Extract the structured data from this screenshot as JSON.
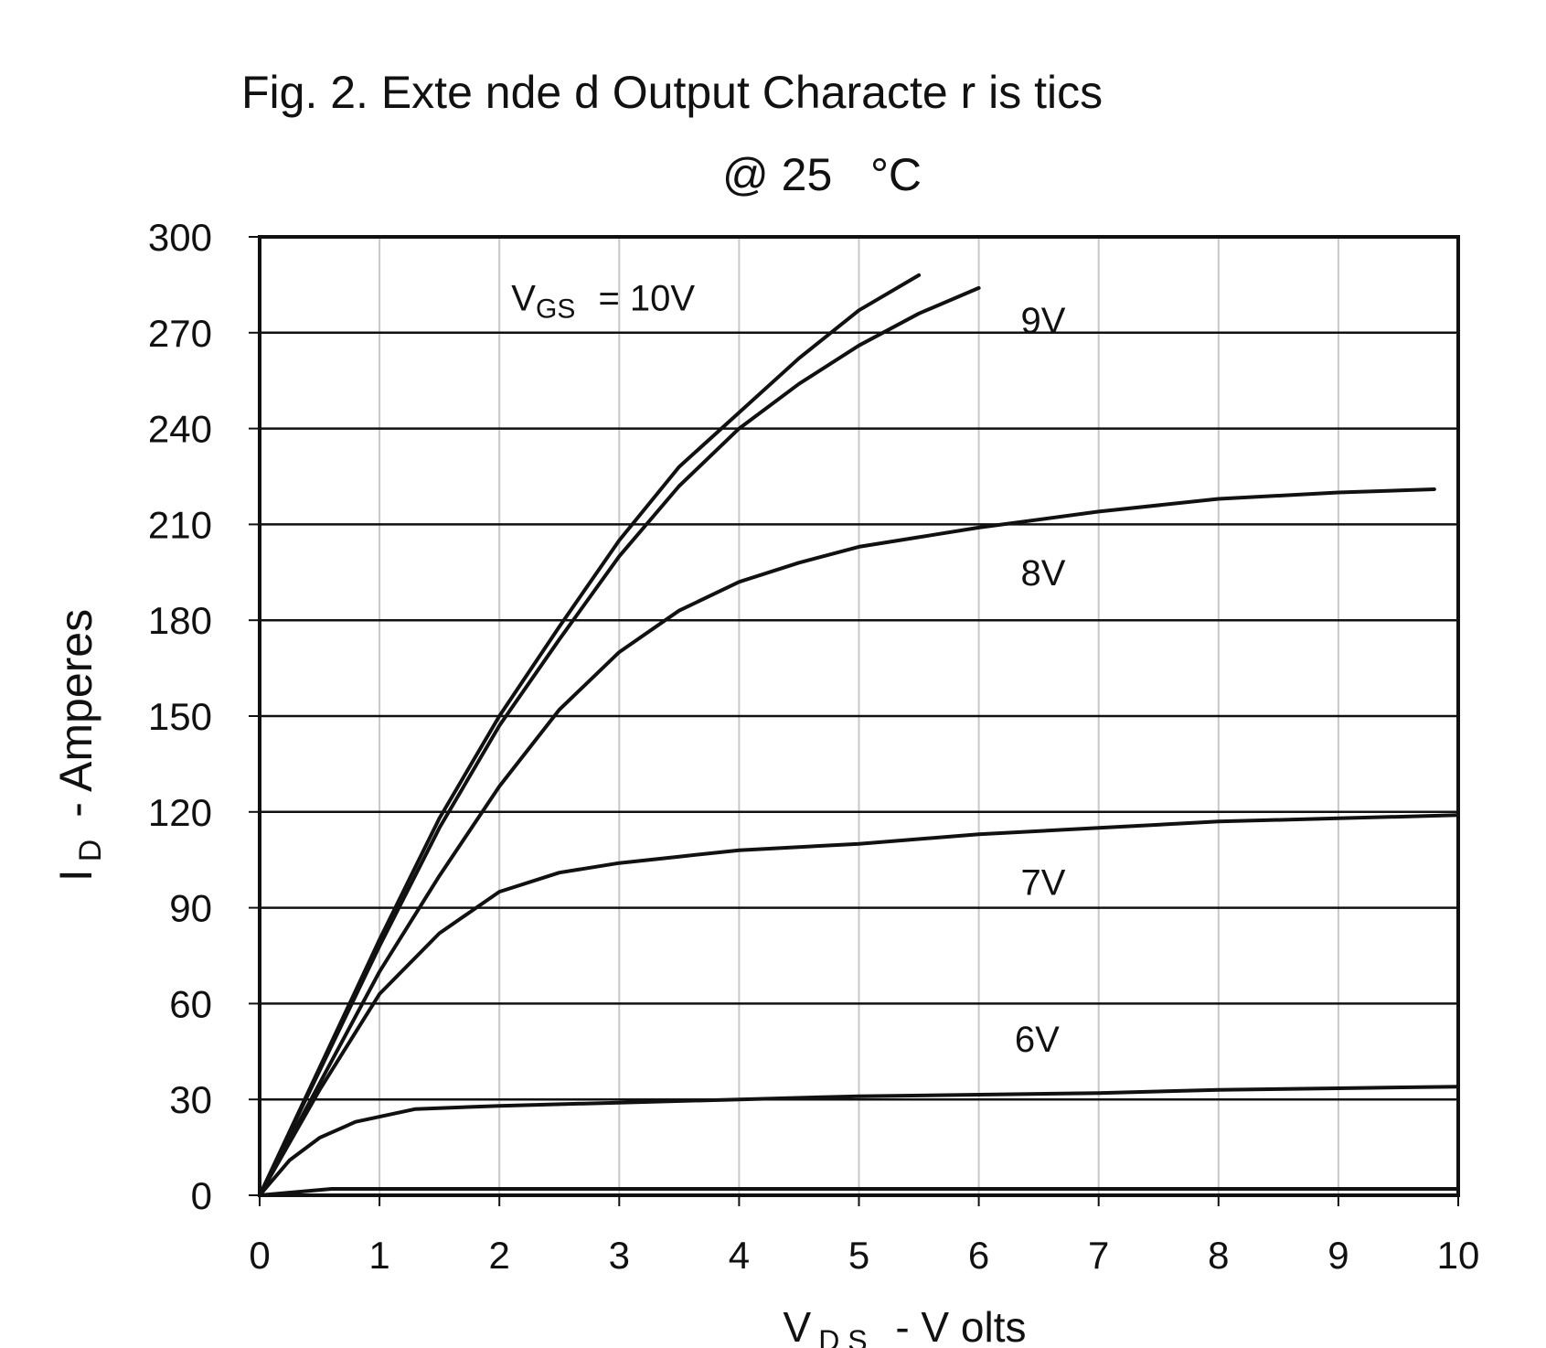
{
  "chart_data": {
    "type": "line",
    "title": "Fig. 2. Exte nde d Output Characte r is tics",
    "subtitle": "@ 25   °C",
    "xlabel": {
      "main": "V",
      "sub": "D S",
      "rest": " - V olts"
    },
    "ylabel": {
      "main": "I",
      "sub": "D",
      "rest": " - Amperes"
    },
    "xlim": [
      0,
      10
    ],
    "ylim": [
      0,
      300
    ],
    "x_ticks": [
      0,
      1,
      2,
      3,
      4,
      5,
      6,
      7,
      8,
      9,
      10
    ],
    "y_ticks": [
      0,
      30,
      60,
      90,
      120,
      150,
      180,
      210,
      240,
      270,
      300
    ],
    "grid": true,
    "annotations": [
      {
        "text": "V",
        "sub": "GS",
        "rest": " = 10V",
        "x": 2.1,
        "y": 277
      },
      {
        "text": "9V",
        "x": 6.35,
        "y": 270
      },
      {
        "text": "8V",
        "x": 6.35,
        "y": 191
      },
      {
        "text": "7V",
        "x": 6.35,
        "y": 94
      },
      {
        "text": "6V",
        "x": 6.3,
        "y": 45
      }
    ],
    "series": [
      {
        "x": [
          0,
          0.5,
          1.0,
          1.5,
          2.0,
          2.5,
          3.0,
          3.5,
          4.0,
          4.5,
          5.0,
          5.5
        ],
        "y": [
          0,
          40,
          80,
          118,
          150,
          178,
          205,
          228,
          245,
          262,
          277,
          288
        ]
      },
      {
        "x": [
          0,
          0.5,
          1.0,
          1.5,
          2.0,
          2.5,
          3.0,
          3.5,
          4.0,
          4.5,
          5.0,
          5.5,
          6.0
        ],
        "y": [
          0,
          39,
          78,
          115,
          147,
          174,
          200,
          222,
          240,
          254,
          266,
          276,
          284
        ]
      },
      {
        "x": [
          0,
          0.5,
          1.0,
          1.5,
          2.0,
          2.5,
          3.0,
          3.5,
          4.0,
          4.5,
          5.0,
          5.5,
          6.0,
          7.0,
          8.0,
          9.0,
          9.8
        ],
        "y": [
          0,
          35,
          70,
          100,
          128,
          152,
          170,
          183,
          192,
          198,
          203,
          206,
          209,
          214,
          218,
          220,
          221
        ]
      },
      {
        "x": [
          0,
          0.5,
          1.0,
          1.5,
          2.0,
          2.5,
          3.0,
          3.5,
          4.0,
          5.0,
          6.0,
          7.0,
          8.0,
          9.0,
          10.0
        ],
        "y": [
          0,
          33,
          63,
          82,
          95,
          101,
          104,
          106,
          108,
          110,
          113,
          115,
          117,
          118,
          119
        ]
      },
      {
        "x": [
          0,
          0.25,
          0.5,
          0.8,
          1.3,
          2.0,
          3.0,
          4.0,
          5.0,
          6.0,
          7.0,
          8.0,
          9.0,
          10.0
        ],
        "y": [
          0,
          11,
          18,
          23,
          27,
          28,
          29,
          30,
          31,
          31.5,
          32,
          33,
          33.5,
          34
        ]
      },
      {
        "x": [
          0,
          0.3,
          0.6,
          2.0,
          4.0,
          6.0,
          8.0,
          10.0
        ],
        "y": [
          0,
          1,
          2,
          2,
          2,
          2,
          2,
          2
        ]
      }
    ]
  }
}
